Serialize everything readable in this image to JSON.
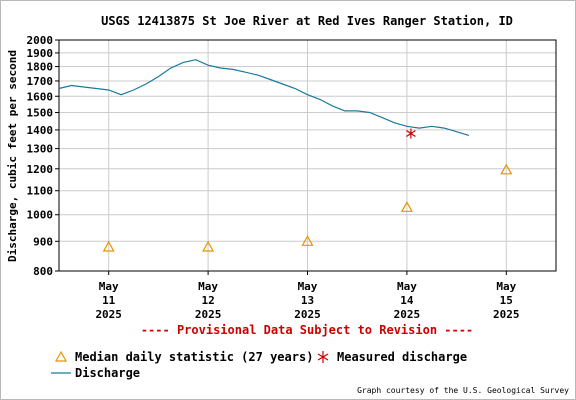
{
  "chart_data": {
    "type": "line",
    "title": "USGS 12413875 St Joe River at Red Ives Ranger Station, ID",
    "ylabel": "Discharge, cubic feet per second",
    "yscale": "log",
    "ylim": [
      800,
      2000
    ],
    "yticks": [
      800,
      900,
      1000,
      1100,
      1200,
      1300,
      1400,
      1500,
      1600,
      1700,
      1800,
      1900,
      2000
    ],
    "xlim": [
      "2025-05-10 12:00",
      "2025-05-15 12:00"
    ],
    "xticks": [
      {
        "x": "2025-05-11 00:00",
        "line1": "May",
        "line2": "11",
        "line3": "2025"
      },
      {
        "x": "2025-05-12 00:00",
        "line1": "May",
        "line2": "12",
        "line3": "2025"
      },
      {
        "x": "2025-05-13 00:00",
        "line1": "May",
        "line2": "13",
        "line3": "2025"
      },
      {
        "x": "2025-05-14 00:00",
        "line1": "May",
        "line2": "14",
        "line3": "2025"
      },
      {
        "x": "2025-05-15 00:00",
        "line1": "May",
        "line2": "15",
        "line3": "2025"
      }
    ],
    "grid": true,
    "series": [
      {
        "name": "Discharge",
        "color": "#1a7a9c",
        "x": [
          "2025-05-10 12:00",
          "2025-05-10 15:00",
          "2025-05-10 18:00",
          "2025-05-10 21:00",
          "2025-05-11 00:00",
          "2025-05-11 03:00",
          "2025-05-11 06:00",
          "2025-05-11 09:00",
          "2025-05-11 12:00",
          "2025-05-11 15:00",
          "2025-05-11 18:00",
          "2025-05-11 21:00",
          "2025-05-12 00:00",
          "2025-05-12 03:00",
          "2025-05-12 06:00",
          "2025-05-12 09:00",
          "2025-05-12 12:00",
          "2025-05-12 15:00",
          "2025-05-12 18:00",
          "2025-05-12 21:00",
          "2025-05-13 00:00",
          "2025-05-13 03:00",
          "2025-05-13 06:00",
          "2025-05-13 09:00",
          "2025-05-13 12:00",
          "2025-05-13 15:00",
          "2025-05-13 18:00",
          "2025-05-13 21:00",
          "2025-05-14 00:00",
          "2025-05-14 03:00",
          "2025-05-14 06:00",
          "2025-05-14 09:00",
          "2025-05-14 12:00",
          "2025-05-14 15:00"
        ],
        "values": [
          1650,
          1670,
          1660,
          1650,
          1640,
          1610,
          1640,
          1680,
          1730,
          1790,
          1830,
          1850,
          1810,
          1790,
          1780,
          1760,
          1740,
          1710,
          1680,
          1650,
          1610,
          1580,
          1540,
          1510,
          1510,
          1500,
          1470,
          1440,
          1420,
          1410,
          1420,
          1410,
          1390,
          1370
        ]
      }
    ],
    "median": {
      "name": "Median daily statistic (27 years)",
      "color": "#e69500",
      "x": [
        "2025-05-11 00:00",
        "2025-05-12 00:00",
        "2025-05-13 00:00",
        "2025-05-14 00:00",
        "2025-05-15 00:00"
      ],
      "values": [
        880,
        880,
        900,
        1030,
        1195
      ]
    },
    "measured": {
      "name": "Measured discharge",
      "color": "#cc0000",
      "x": [
        "2025-05-14 00:00"
      ],
      "values": [
        1380
      ]
    }
  },
  "provisional_text": "---- Provisional Data Subject to Revision ----",
  "legend": {
    "median_label": "Median daily statistic (27 years)",
    "measured_label": "Measured discharge",
    "discharge_label": "Discharge"
  },
  "credit": "Graph courtesy of the U.S. Geological Survey"
}
